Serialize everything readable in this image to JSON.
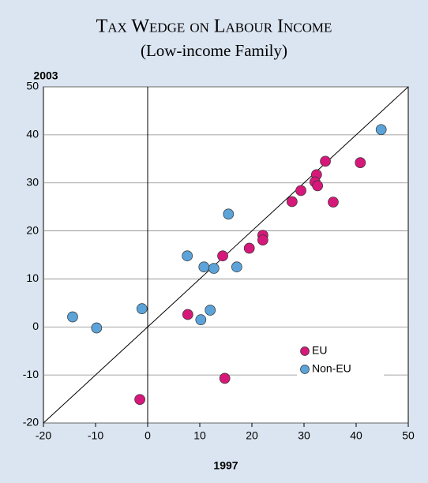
{
  "chart_data": {
    "type": "scatter",
    "title": "Tax Wedge on Labour Income",
    "subtitle": "(Low-income Family)",
    "y_label": "2003",
    "x_label": "1997",
    "xlim": [
      -20,
      50
    ],
    "xticks": [
      -20,
      -10,
      0,
      10,
      20,
      30,
      40,
      50
    ],
    "ylim": [
      -20,
      50
    ],
    "yticks": [
      -20,
      -10,
      0,
      10,
      20,
      30,
      40,
      50
    ],
    "grid": true,
    "legend": "lower right",
    "series": [
      {
        "name": "EU",
        "color": "#d6187a",
        "x": [
          -1.5,
          7.7,
          14.4,
          14.8,
          19.5,
          22.1,
          22.1,
          27.7,
          29.4,
          32.4,
          32.1,
          32.6,
          34.1,
          35.6,
          40.8
        ],
        "values": [
          -15.1,
          2.6,
          14.8,
          -10.7,
          16.4,
          19.1,
          18.1,
          26.1,
          28.4,
          31.7,
          30.2,
          29.4,
          34.5,
          26.0,
          34.2
        ]
      },
      {
        "name": "Non-EU",
        "color": "#5ba3d9",
        "x": [
          -14.4,
          -9.8,
          -1.1,
          7.6,
          10.2,
          10.8,
          12.0,
          12.7,
          15.5,
          17.1,
          44.8
        ],
        "values": [
          2.1,
          -0.2,
          3.8,
          14.8,
          1.5,
          12.5,
          3.5,
          12.2,
          23.5,
          12.5,
          41.1
        ]
      }
    ]
  }
}
